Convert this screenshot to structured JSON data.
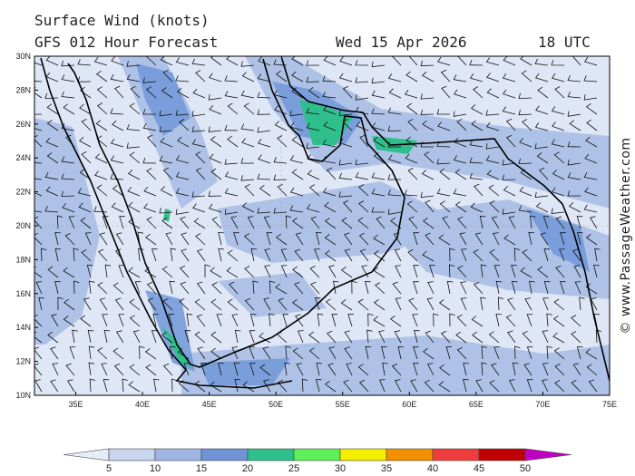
{
  "header": {
    "title": "Surface Wind (knots)",
    "model": "GFS 012 Hour Forecast",
    "date": "Wed 15 Apr 2026",
    "time": "18 UTC"
  },
  "latitude_labels": [
    "30N",
    "28N",
    "26N",
    "24N",
    "22N",
    "20N",
    "18N",
    "16N",
    "14N",
    "12N",
    "10N"
  ],
  "longitude_labels": [
    "35E",
    "40E",
    "45E",
    "50E",
    "55E",
    "60E",
    "65E",
    "70E",
    "75E"
  ],
  "colorbar": {
    "ticks": [
      5,
      10,
      15,
      20,
      25,
      30,
      35,
      40,
      45,
      50
    ],
    "colors": [
      "#e6ecf8",
      "#c8d5ee",
      "#9fb6e2",
      "#6f93d5",
      "#2fbf8c",
      "#5ef05a",
      "#f2ee00",
      "#f29000",
      "#f03c3c",
      "#c00000",
      "#c000c0"
    ]
  },
  "watermark": "© www.PassageWeather.com"
}
